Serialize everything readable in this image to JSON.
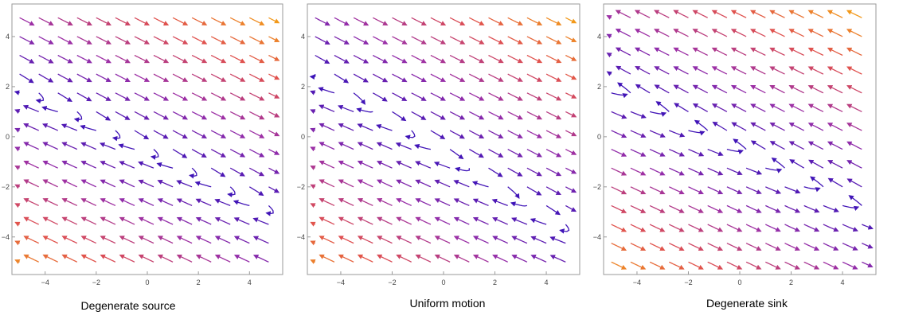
{
  "chart_data": [
    {
      "type": "streamplot",
      "title": "Degenerate source",
      "xlabel": "",
      "ylabel": "",
      "xlim": [
        -5.3,
        5.3
      ],
      "ylim": [
        -5.5,
        5.3
      ],
      "x_ticks": [
        -4,
        -2,
        0,
        2,
        4
      ],
      "y_ticks": [
        -4,
        -2,
        0,
        2,
        4
      ],
      "x_tick_labels": [
        "−4",
        "−2",
        "0",
        "2",
        "4"
      ],
      "y_tick_labels": [
        "−4",
        "−2",
        "0",
        "2",
        "4"
      ],
      "grid": false,
      "color_scale": [
        "#3a12b8",
        "#9a2fa8",
        "#e0504f",
        "#f5a512"
      ],
      "field": {
        "a": 1,
        "b": 2,
        "c": -0.5,
        "d": -1,
        "px": 1,
        "py": -0.62
      }
    },
    {
      "type": "streamplot",
      "title": "Uniform motion",
      "xlabel": "",
      "ylabel": "",
      "xlim": [
        -5.3,
        5.3
      ],
      "ylim": [
        -5.5,
        5.3
      ],
      "x_ticks": [
        -4,
        -2,
        0,
        2,
        4
      ],
      "y_ticks": [
        -4,
        -2,
        0,
        2,
        4
      ],
      "x_tick_labels": [
        "−4",
        "−2",
        "0",
        "2",
        "4"
      ],
      "y_tick_labels": [
        "−4",
        "−2",
        "0",
        "2",
        "4"
      ],
      "grid": false,
      "color_scale": [
        "#3a12b8",
        "#9a2fa8",
        "#e0504f",
        "#f5a512"
      ],
      "field": {
        "a": 1,
        "b": 1.6,
        "c": -0.5,
        "d": -0.8,
        "px": 1,
        "py": -0.6
      }
    },
    {
      "type": "streamplot",
      "title": "Degenerate sink",
      "xlabel": "",
      "ylabel": "",
      "xlim": [
        -5.3,
        5.3
      ],
      "ylim": [
        -5.5,
        5.3
      ],
      "x_ticks": [
        -4,
        -2,
        0,
        2,
        4
      ],
      "y_ticks": [
        -4,
        -2,
        0,
        2,
        4
      ],
      "x_tick_labels": [
        "−4",
        "−2",
        "0",
        "2",
        "4"
      ],
      "y_tick_labels": [
        "−4",
        "−2",
        "0",
        "2",
        "4"
      ],
      "grid": false,
      "color_scale": [
        "#3a12b8",
        "#9a2fa8",
        "#e0504f",
        "#f5a512"
      ],
      "field": {
        "a": -1,
        "b": -2,
        "c": 0.5,
        "d": 1,
        "px": -1,
        "py": 0.62
      }
    }
  ]
}
